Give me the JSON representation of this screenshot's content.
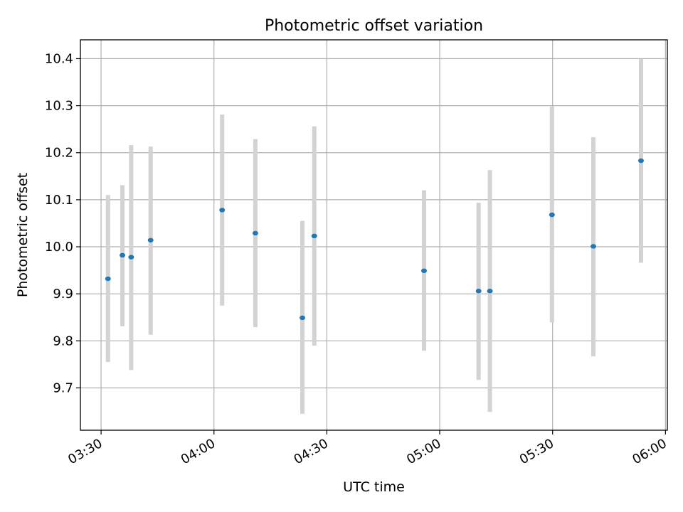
{
  "chart_data": {
    "type": "scatter",
    "title": "Photometric offset variation",
    "xlabel": "UTC time",
    "ylabel": "Photometric offset",
    "x_unit": "UTC time (HH:MM)",
    "x_ticks": [
      "03:30",
      "04:00",
      "04:30",
      "05:00",
      "05:30",
      "06:00"
    ],
    "y_ticks": [
      "9.7",
      "9.8",
      "9.9",
      "10.0",
      "10.1",
      "10.2",
      "10.3",
      "10.4"
    ],
    "xlim": [
      "03:24:30",
      "06:00:30"
    ],
    "ylim": [
      9.61,
      10.44
    ],
    "grid": true,
    "legend": "none",
    "colors": {
      "points": "#1f77b4",
      "error_bars": "#d3d3d3",
      "grid": "#b0b0b0"
    },
    "points": [
      {
        "x": "03:31:50",
        "y": 9.932,
        "err_low": 9.755,
        "err_high": 10.11
      },
      {
        "x": "03:35:40",
        "y": 9.982,
        "err_low": 9.831,
        "err_high": 10.131
      },
      {
        "x": "03:38:00",
        "y": 9.978,
        "err_low": 9.738,
        "err_high": 10.216
      },
      {
        "x": "03:43:10",
        "y": 10.014,
        "err_low": 9.813,
        "err_high": 10.213
      },
      {
        "x": "04:02:10",
        "y": 10.078,
        "err_low": 9.875,
        "err_high": 10.281
      },
      {
        "x": "04:11:00",
        "y": 10.029,
        "err_low": 9.829,
        "err_high": 10.229
      },
      {
        "x": "04:23:30",
        "y": 9.849,
        "err_low": 9.645,
        "err_high": 10.055
      },
      {
        "x": "04:26:40",
        "y": 10.023,
        "err_low": 9.79,
        "err_high": 10.256
      },
      {
        "x": "04:55:50",
        "y": 9.949,
        "err_low": 9.779,
        "err_high": 10.12
      },
      {
        "x": "05:10:20",
        "y": 9.906,
        "err_low": 9.717,
        "err_high": 10.094
      },
      {
        "x": "05:13:20",
        "y": 9.906,
        "err_low": 9.649,
        "err_high": 10.163
      },
      {
        "x": "05:29:50",
        "y": 10.068,
        "err_low": 9.839,
        "err_high": 10.298
      },
      {
        "x": "05:40:50",
        "y": 10.001,
        "err_low": 9.767,
        "err_high": 10.233
      },
      {
        "x": "05:53:30",
        "y": 10.183,
        "err_low": 9.966,
        "err_high": 10.399
      }
    ]
  }
}
